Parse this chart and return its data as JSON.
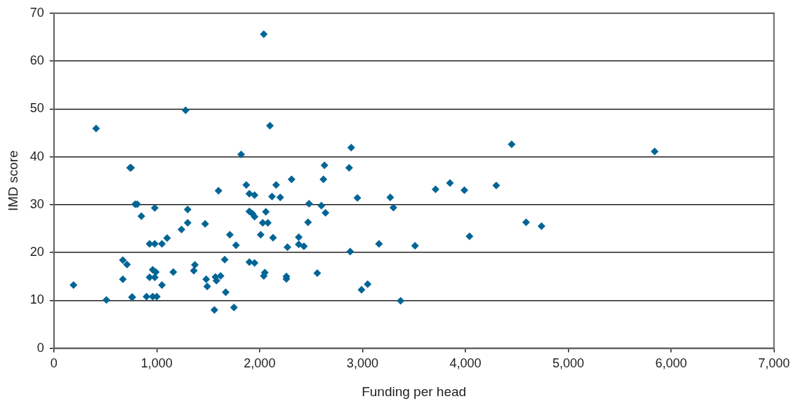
{
  "chart_data": {
    "type": "scatter",
    "xlabel": "Funding per head",
    "ylabel": "IMD score",
    "marker": "diamond",
    "grid": "y",
    "legend": false,
    "xlim": [
      0,
      7000
    ],
    "xticks": [
      {
        "value": 0,
        "label": "0"
      },
      {
        "value": 1000,
        "label": "1,000"
      },
      {
        "value": 2000,
        "label": "2,000"
      },
      {
        "value": 3000,
        "label": "3,000"
      },
      {
        "value": 4000,
        "label": "4,000"
      },
      {
        "value": 5000,
        "label": "5,000"
      },
      {
        "value": 6000,
        "label": "6,000"
      },
      {
        "value": 7000,
        "label": "7,000"
      }
    ],
    "ylim": [
      0,
      70
    ],
    "yticks": [
      0,
      10,
      20,
      30,
      40,
      50,
      60,
      70
    ],
    "series": [
      {
        "color": "#006595",
        "x": [
          190,
          410,
          510,
          670,
          710,
          750,
          760,
          810,
          850,
          960,
          980,
          980,
          1820,
          740,
          1870,
          1600,
          1900,
          1950,
          790,
          980,
          1300,
          1900,
          1950,
          1930,
          2060,
          1300,
          1470,
          2030,
          1240,
          1710,
          2010,
          1100,
          930,
          1050,
          1770,
          1660,
          1900,
          1950,
          1370,
          960,
          990,
          1160,
          1360,
          670,
          930,
          1480,
          1570,
          1620,
          1580,
          2040,
          1050,
          1490,
          1670,
          760,
          900,
          1000,
          1560,
          1750,
          1280,
          2040,
          2100,
          2890,
          2630,
          2870,
          2310,
          2620,
          2160,
          2120,
          2200,
          2950,
          3270,
          2480,
          2600,
          3300,
          2080,
          2640,
          2470,
          2130,
          2380,
          2270,
          2380,
          2430,
          3160,
          2880,
          2050,
          2260,
          2260,
          2560,
          3050,
          2990,
          3370,
          4450,
          3850,
          3710,
          3990,
          4300,
          4590,
          4740,
          4040,
          3510,
          5840
        ],
        "values": [
          13.2,
          45.9,
          10.1,
          18.4,
          17.5,
          37.7,
          10.7,
          30.1,
          27.6,
          10.8,
          21.8,
          14.8,
          40.5,
          37.7,
          34.1,
          32.9,
          32.3,
          32.0,
          30.1,
          29.3,
          29.0,
          28.6,
          27.5,
          28.1,
          28.5,
          26.2,
          26.0,
          26.2,
          24.8,
          23.7,
          23.7,
          23.0,
          21.8,
          21.8,
          21.5,
          18.5,
          18.0,
          17.8,
          17.4,
          16.4,
          15.9,
          15.9,
          16.2,
          14.4,
          14.8,
          14.4,
          14.9,
          15.1,
          14.1,
          15.1,
          13.2,
          12.9,
          11.7,
          10.6,
          10.8,
          10.8,
          8.0,
          8.5,
          49.7,
          65.6,
          46.5,
          41.9,
          38.2,
          37.7,
          35.3,
          35.3,
          34.1,
          31.7,
          31.5,
          31.4,
          31.5,
          30.2,
          29.8,
          29.4,
          26.2,
          28.3,
          26.3,
          23.1,
          23.2,
          21.1,
          21.7,
          21.3,
          21.8,
          20.2,
          15.8,
          15.0,
          14.5,
          15.7,
          13.4,
          12.2,
          9.9,
          42.6,
          34.5,
          33.2,
          33.0,
          34.0,
          26.3,
          25.5,
          23.4,
          21.4,
          41.1
        ]
      }
    ]
  }
}
